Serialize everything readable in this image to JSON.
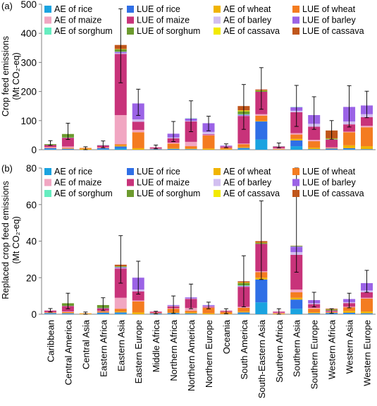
{
  "chart_data": [
    {
      "type": "bar",
      "stacked": true,
      "panel_label": "(a)",
      "ylabel": "Crop feed emissions",
      "ylabel_unit": "(Mt CO₂-eq)",
      "ylim": [
        0,
        500
      ],
      "yticks": [
        0,
        100,
        200,
        300,
        400,
        500
      ],
      "legend_placement": "top",
      "categories": [
        "Caribbean",
        "Central America",
        "Central Asia",
        "Eastern Africa",
        "Eastern Asia",
        "Eastern Europe",
        "Middle Africa",
        "Northern Africa",
        "Northern America",
        "Northern Europe",
        "Oceania",
        "South America",
        "South-Eastern Asia",
        "Southern Africa",
        "Southern Asia",
        "Southern Europe",
        "Western Africa",
        "Western Asia",
        "Western Europe"
      ],
      "series": [
        {
          "name": "AE of rice",
          "color": "#1aa3e0",
          "values": [
            2,
            1,
            0,
            2,
            5,
            0,
            1,
            1,
            1,
            0,
            0,
            3,
            35,
            0,
            12,
            1,
            1,
            2,
            1
          ]
        },
        {
          "name": "LUE of rice",
          "color": "#2f6fe6",
          "values": [
            3,
            2,
            0,
            3,
            6,
            0,
            1,
            2,
            1,
            0,
            0,
            3,
            62,
            0,
            20,
            1,
            3,
            3,
            1
          ]
        },
        {
          "name": "AE of wheat",
          "color": "#f0b400",
          "values": [
            0,
            1,
            3,
            0,
            3,
            5,
            0,
            2,
            2,
            4,
            2,
            3,
            2,
            1,
            5,
            5,
            1,
            10,
            10
          ]
        },
        {
          "name": "LUE of wheat",
          "color": "#f47c20",
          "values": [
            1,
            2,
            3,
            1,
            5,
            55,
            1,
            16,
            8,
            45,
            4,
            10,
            18,
            1,
            15,
            22,
            1,
            45,
            65
          ]
        },
        {
          "name": "AE of maize",
          "color": "#f1a6c2",
          "values": [
            3,
            5,
            0,
            2,
            100,
            8,
            1,
            3,
            15,
            1,
            1,
            2,
            5,
            3,
            5,
            5,
            2,
            2,
            5
          ]
        },
        {
          "name": "LUE of maize",
          "color": "#c8337a",
          "values": [
            7,
            30,
            0,
            7,
            210,
            28,
            4,
            15,
            70,
            3,
            4,
            95,
            77,
            6,
            72,
            45,
            27,
            25,
            30
          ]
        },
        {
          "name": "AE of barley",
          "color": "#d2bff0",
          "values": [
            0,
            0,
            0,
            0,
            3,
            8,
            0,
            3,
            2,
            8,
            1,
            1,
            0,
            0,
            5,
            10,
            0,
            10,
            10
          ]
        },
        {
          "name": "LUE of barley",
          "color": "#9b63e6",
          "values": [
            0,
            0,
            0,
            0,
            4,
            55,
            0,
            13,
            8,
            30,
            2,
            3,
            0,
            0,
            12,
            30,
            0,
            50,
            30
          ]
        },
        {
          "name": "AE of sorghum",
          "color": "#66edc0",
          "values": [
            0,
            1,
            0,
            1,
            1,
            0,
            0,
            0,
            1,
            0,
            0,
            2,
            0,
            1,
            1,
            0,
            1,
            0,
            0
          ]
        },
        {
          "name": "LUE of sorghum",
          "color": "#6c9a2e",
          "values": [
            3,
            12,
            0,
            0,
            8,
            0,
            0,
            0,
            0,
            0,
            0,
            10,
            4,
            0,
            0,
            0,
            2,
            0,
            0
          ]
        },
        {
          "name": "AE of cassava",
          "color": "#f2ea00",
          "values": [
            0,
            0,
            0,
            0,
            1,
            0,
            0,
            0,
            0,
            0,
            0,
            3,
            1,
            0,
            0,
            0,
            1,
            0,
            0
          ]
        },
        {
          "name": "LUE of cassava",
          "color": "#c0561b",
          "values": [
            0,
            0,
            0,
            0,
            14,
            0,
            0,
            0,
            0,
            0,
            0,
            15,
            3,
            0,
            0,
            0,
            27,
            0,
            0
          ]
        }
      ],
      "error_bars": [
        [
          15,
          31
        ],
        [
          35,
          91
        ],
        [
          0,
          10
        ],
        [
          7,
          30
        ],
        [
          230,
          484
        ],
        [
          118,
          208
        ],
        [
          3,
          16
        ],
        [
          28,
          97
        ],
        [
          62,
          168
        ],
        [
          65,
          115
        ],
        [
          7,
          20
        ],
        [
          70,
          224
        ],
        [
          139,
          282
        ],
        [
          6,
          23
        ],
        [
          80,
          221
        ],
        [
          70,
          182
        ],
        [
          36,
          100
        ],
        [
          78,
          220
        ],
        [
          110,
          201
        ]
      ]
    },
    {
      "type": "bar",
      "stacked": true,
      "panel_label": "(b)",
      "ylabel": "Replaced crop feed emissions",
      "ylabel_unit": "(Mt CO₂-eq)",
      "ylim": [
        0,
        80
      ],
      "yticks": [
        0,
        20,
        40,
        60,
        80
      ],
      "legend_placement": "top",
      "categories": [
        "Caribbean",
        "Central America",
        "Central Asia",
        "Eastern Africa",
        "Eastern Asia",
        "Eastern Europe",
        "Middle Africa",
        "Northern Africa",
        "Northern America",
        "Northern Europe",
        "Oceania",
        "South America",
        "South-Eastern Asia",
        "Southern Africa",
        "Southern Asia",
        "Southern Europe",
        "Western Africa",
        "Western Asia",
        "Western Europe"
      ],
      "series": [
        {
          "name": "AE of rice",
          "color": "#1aa3e0",
          "values": [
            0.3,
            0.2,
            0,
            0.4,
            0.5,
            0,
            0.2,
            0.3,
            0.2,
            0,
            0,
            0.5,
            6.5,
            0,
            3,
            0.2,
            0.2,
            0.3,
            0.2
          ]
        },
        {
          "name": "LUE of rice",
          "color": "#2f6fe6",
          "values": [
            0.3,
            0.3,
            0,
            0.5,
            0.5,
            0,
            0.2,
            0.4,
            0.2,
            0,
            0,
            0.5,
            12.5,
            0,
            5,
            0.3,
            0.5,
            0.5,
            0.3
          ]
        },
        {
          "name": "AE of wheat",
          "color": "#f0b400",
          "values": [
            0.1,
            0.2,
            0.3,
            0.2,
            0.5,
            1,
            0,
            0.3,
            0.5,
            0.5,
            0.3,
            0.5,
            1,
            0.2,
            1,
            0.5,
            0.2,
            1,
            1
          ]
        },
        {
          "name": "LUE of wheat",
          "color": "#f47c20",
          "values": [
            0.3,
            0.5,
            0.2,
            0.5,
            1.5,
            6,
            0.3,
            2,
            1,
            3,
            1,
            2,
            3,
            0.3,
            3,
            2,
            0.3,
            2,
            7
          ]
        },
        {
          "name": "AE of maize",
          "color": "#f1a6c2",
          "values": [
            0.2,
            0.3,
            0,
            0.2,
            6,
            0.5,
            0.1,
            0.3,
            1.5,
            0.2,
            0.1,
            0.5,
            0.5,
            0.3,
            1.5,
            0.5,
            0.2,
            0.3,
            0.5
          ]
        },
        {
          "name": "LUE of maize",
          "color": "#c8337a",
          "values": [
            0.8,
            3,
            0,
            1.5,
            16,
            5,
            0.6,
            1,
            5,
            0.5,
            0.5,
            11,
            15,
            0.6,
            19,
            2,
            0.6,
            2,
            3
          ]
        },
        {
          "name": "AE of barley",
          "color": "#d2bff0",
          "values": [
            0,
            0,
            0,
            0,
            0.3,
            1,
            0,
            0.3,
            0.2,
            0.3,
            0,
            0.2,
            0,
            0,
            1.5,
            0.5,
            0,
            0.5,
            1
          ]
        },
        {
          "name": "LUE of barley",
          "color": "#9b63e6",
          "values": [
            0,
            0,
            0,
            0,
            0.4,
            6.5,
            0,
            0.4,
            0.6,
            0.5,
            0,
            0.3,
            0,
            0,
            3,
            1.7,
            0,
            1.7,
            4
          ]
        },
        {
          "name": "AE of sorghum",
          "color": "#66edc0",
          "values": [
            0,
            0.1,
            0,
            0.2,
            0.1,
            0,
            0,
            0,
            0,
            0,
            0,
            0.3,
            0,
            0,
            0.1,
            0,
            0.1,
            0,
            0
          ]
        },
        {
          "name": "LUE of sorghum",
          "color": "#6c9a2e",
          "values": [
            0,
            1.4,
            0,
            1.5,
            0.4,
            0,
            0,
            0,
            0,
            0,
            0,
            1.2,
            0.5,
            0,
            0.3,
            0,
            0.4,
            0,
            0
          ]
        },
        {
          "name": "AE of cassava",
          "color": "#f2ea00",
          "values": [
            0,
            0,
            0,
            0,
            0.1,
            0,
            0,
            0,
            0,
            0,
            0,
            0.3,
            0.2,
            0,
            0,
            0,
            0.1,
            0,
            0
          ]
        },
        {
          "name": "LUE of cassava",
          "color": "#c0561b",
          "values": [
            0,
            0,
            0,
            0,
            0.8,
            0,
            0,
            0,
            0,
            0,
            0,
            0.7,
            0.8,
            0,
            0.1,
            0,
            0.4,
            0,
            0
          ]
        }
      ],
      "error_bars": [
        [
          1.2,
          3.1
        ],
        [
          3,
          11.5
        ],
        [
          0,
          1.2
        ],
        [
          2,
          9
        ],
        [
          17,
          43
        ],
        [
          11,
          29
        ],
        [
          0.2,
          1.6
        ],
        [
          0.5,
          10
        ],
        [
          3,
          16.5
        ],
        [
          3,
          6.6
        ],
        [
          0.3,
          3
        ],
        [
          4,
          32
        ],
        [
          19,
          62
        ],
        [
          0,
          3
        ],
        [
          23,
          80
        ],
        [
          4,
          12
        ],
        [
          0.5,
          3
        ],
        [
          3.5,
          11.5
        ],
        [
          12,
          24
        ]
      ]
    }
  ]
}
